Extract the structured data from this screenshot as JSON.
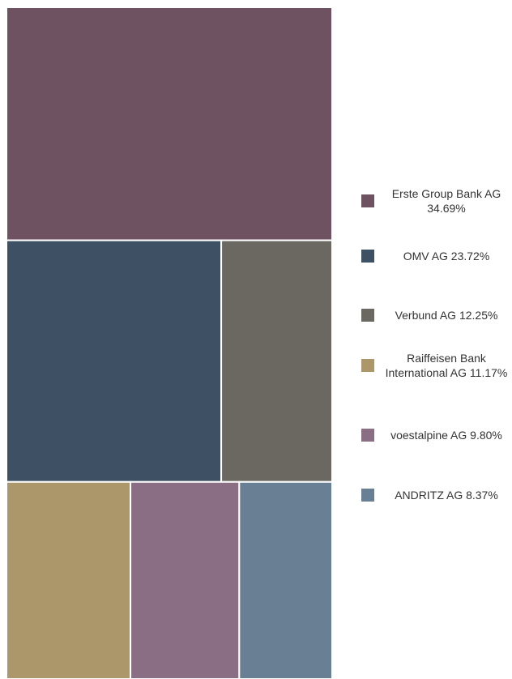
{
  "chart_data": {
    "type": "treemap",
    "series": [
      {
        "name": "Erste Group Bank AG",
        "value": 34.69,
        "label": "Erste Group Bank AG 34.69%",
        "color": "#6e5262"
      },
      {
        "name": "OMV AG",
        "value": 23.72,
        "label": "OMV AG 23.72%",
        "color": "#3e5164"
      },
      {
        "name": "Verbund AG",
        "value": 12.25,
        "label": "Verbund AG 12.25%",
        "color": "#6a6861"
      },
      {
        "name": "Raiffeisen Bank International AG",
        "value": 11.17,
        "label": "Raiffeisen Bank International AG 11.17%",
        "color": "#ac976b"
      },
      {
        "name": "voestalpine AG",
        "value": 9.8,
        "label": "voestalpine AG 9.80%",
        "color": "#8a6f84"
      },
      {
        "name": "ANDRITZ AG",
        "value": 8.37,
        "label": "ANDRITZ AG 8.37%",
        "color": "#687f94"
      }
    ],
    "legend_position": "right"
  }
}
